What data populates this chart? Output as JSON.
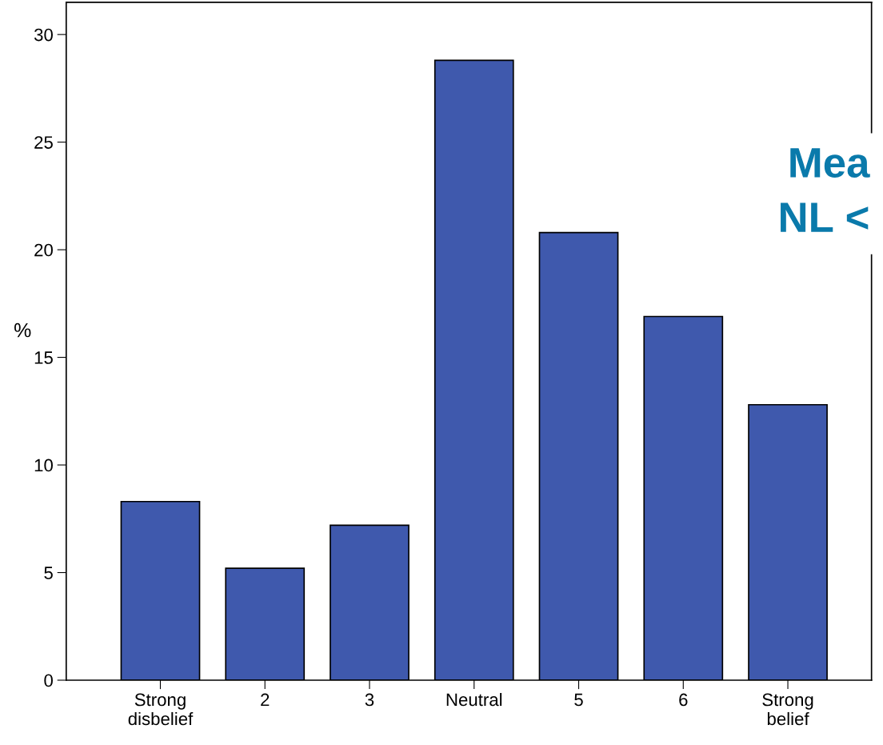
{
  "chart_data": {
    "type": "bar",
    "ylabel": "%",
    "categories": [
      "Strong\ndisbelief",
      "2",
      "3",
      "Neutral",
      "5",
      "6",
      "Strong\nbelief"
    ],
    "values": [
      8.3,
      5.2,
      7.2,
      28.8,
      20.8,
      16.9,
      12.8
    ],
    "color": "#3f59ad",
    "ylim": [
      0,
      31.5
    ],
    "yticks": [
      0,
      5,
      10,
      15,
      20,
      25,
      30
    ],
    "grid": false,
    "annotations": [
      "Mea",
      "NL <"
    ]
  }
}
